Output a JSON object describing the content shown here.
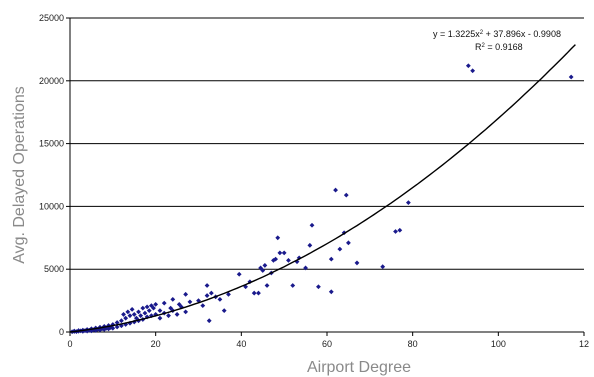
{
  "chart_data": {
    "type": "scatter",
    "xlabel": "Airport Degree",
    "ylabel": "Avg. Delayed Operations",
    "xlim": [
      0,
      120
    ],
    "ylim": [
      0,
      25000
    ],
    "x_ticks": [
      "0",
      "20",
      "40",
      "60",
      "80",
      "100",
      "12"
    ],
    "y_ticks": [
      "0",
      "5000",
      "10000",
      "15000",
      "20000",
      "25000"
    ],
    "grid": "horizontal",
    "point_color": "#1a1a8c",
    "trendline": {
      "type": "polynomial",
      "coefficients": [
        1.3225,
        37.896,
        -0.9908
      ],
      "equation": "y = 1.3225x",
      "equation_sup": "2",
      "equation_rest": " + 37.896x - 0.9908",
      "r2_label": "R",
      "r2_sup": "2",
      "r2_rest": " = 0.9168",
      "color": "#000000"
    },
    "points": [
      [
        0.5,
        20
      ],
      [
        1,
        40
      ],
      [
        1,
        80
      ],
      [
        1.5,
        30
      ],
      [
        2,
        60
      ],
      [
        2,
        120
      ],
      [
        2.5,
        90
      ],
      [
        3,
        50
      ],
      [
        3,
        150
      ],
      [
        3.5,
        110
      ],
      [
        4,
        70
      ],
      [
        4,
        200
      ],
      [
        4.5,
        140
      ],
      [
        5,
        90
      ],
      [
        5,
        260
      ],
      [
        5.5,
        180
      ],
      [
        6,
        120
      ],
      [
        6,
        320
      ],
      [
        6.5,
        220
      ],
      [
        7,
        160
      ],
      [
        7,
        380
      ],
      [
        7.5,
        260
      ],
      [
        8,
        200
      ],
      [
        8,
        450
      ],
      [
        8.5,
        300
      ],
      [
        9,
        250
      ],
      [
        9,
        520
      ],
      [
        9.5,
        350
      ],
      [
        10,
        300
      ],
      [
        10,
        600
      ],
      [
        11,
        400
      ],
      [
        11,
        750
      ],
      [
        12,
        500
      ],
      [
        12,
        900
      ],
      [
        12.5,
        1400
      ],
      [
        13,
        600
      ],
      [
        13,
        1100
      ],
      [
        13.5,
        1600
      ],
      [
        14,
        700
      ],
      [
        14,
        1300
      ],
      [
        14.5,
        1800
      ],
      [
        15,
        800
      ],
      [
        15,
        1400
      ],
      [
        15.5,
        1100
      ],
      [
        16,
        900
      ],
      [
        16,
        1600
      ],
      [
        16.5,
        1300
      ],
      [
        17,
        1000
      ],
      [
        17,
        1900
      ],
      [
        17.5,
        1500
      ],
      [
        18,
        1200
      ],
      [
        18,
        2000
      ],
      [
        18.5,
        1700
      ],
      [
        19,
        1300
      ],
      [
        19,
        2100
      ],
      [
        19.5,
        1900
      ],
      [
        20,
        1400
      ],
      [
        20,
        2200
      ],
      [
        21,
        1100
      ],
      [
        21,
        1700
      ],
      [
        22,
        1500
      ],
      [
        22,
        2300
      ],
      [
        23,
        1300
      ],
      [
        23.5,
        1900
      ],
      [
        24,
        1700
      ],
      [
        24,
        2600
      ],
      [
        25,
        1400
      ],
      [
        25.5,
        2200
      ],
      [
        26,
        2000
      ],
      [
        27,
        1600
      ],
      [
        27,
        3000
      ],
      [
        28,
        2400
      ],
      [
        30,
        2500
      ],
      [
        31,
        2100
      ],
      [
        32,
        3700
      ],
      [
        32,
        2900
      ],
      [
        32.5,
        900
      ],
      [
        33,
        3100
      ],
      [
        34,
        2800
      ],
      [
        35,
        2600
      ],
      [
        36,
        1700
      ],
      [
        37,
        3000
      ],
      [
        39.5,
        4600
      ],
      [
        41,
        3600
      ],
      [
        42,
        4000
      ],
      [
        43,
        3100
      ],
      [
        44,
        3100
      ],
      [
        44.5,
        5100
      ],
      [
        45,
        4900
      ],
      [
        45.5,
        5300
      ],
      [
        46,
        3700
      ],
      [
        47,
        4700
      ],
      [
        47.5,
        5700
      ],
      [
        48,
        5800
      ],
      [
        48.5,
        7500
      ],
      [
        49,
        6300
      ],
      [
        50,
        6300
      ],
      [
        51,
        5700
      ],
      [
        52,
        3700
      ],
      [
        53,
        5600
      ],
      [
        53.5,
        5900
      ],
      [
        55,
        5100
      ],
      [
        56,
        6900
      ],
      [
        56.5,
        8500
      ],
      [
        58,
        3600
      ],
      [
        61,
        3200
      ],
      [
        61,
        5800
      ],
      [
        62,
        11300
      ],
      [
        63,
        6600
      ],
      [
        64,
        7900
      ],
      [
        64.5,
        10900
      ],
      [
        65,
        7100
      ],
      [
        67,
        5500
      ],
      [
        73,
        5200
      ],
      [
        76,
        8000
      ],
      [
        77,
        8100
      ],
      [
        79,
        10300
      ],
      [
        93,
        21200
      ],
      [
        94,
        20800
      ],
      [
        117,
        20300
      ]
    ]
  }
}
